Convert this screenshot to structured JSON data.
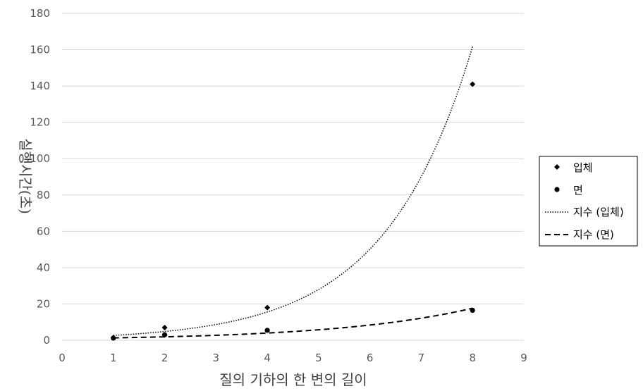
{
  "chart_data": {
    "type": "scatter",
    "xlabel": "질의 기하의 한 변의 길이",
    "ylabel": "실행시간(초)",
    "xlim": [
      0,
      9
    ],
    "ylim": [
      0,
      180
    ],
    "xticks": [
      0,
      1,
      2,
      3,
      4,
      5,
      6,
      7,
      8,
      9
    ],
    "yticks": [
      0,
      20,
      40,
      60,
      80,
      100,
      120,
      140,
      160,
      180
    ],
    "grid": "horizontal",
    "legend_position": "right",
    "series": [
      {
        "name": "입체",
        "marker": "diamond",
        "color": "#000000",
        "x": [
          1,
          2,
          2,
          4,
          8
        ],
        "y": [
          1.5,
          3,
          7,
          18,
          141
        ]
      },
      {
        "name": "면",
        "marker": "circle",
        "color": "#000000",
        "x": [
          1,
          2,
          4,
          8
        ],
        "y": [
          1.2,
          3,
          5.5,
          16.5
        ]
      }
    ],
    "trendlines": [
      {
        "name": "지수 (입체)",
        "kind": "exponential",
        "style": "dotted",
        "a": 1.5,
        "b": 0.585,
        "x_range": [
          1,
          8
        ]
      },
      {
        "name": "지수 (면)",
        "kind": "exponential",
        "style": "dashed",
        "a": 0.9,
        "b": 0.372,
        "x_range": [
          1,
          8
        ]
      }
    ]
  }
}
